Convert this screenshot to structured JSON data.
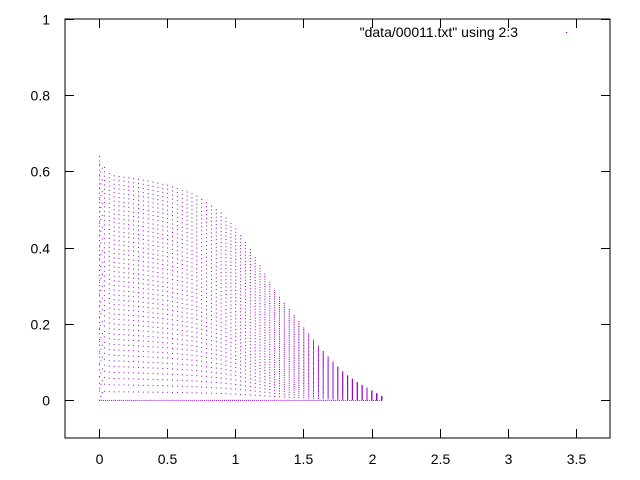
{
  "chart_data": {
    "type": "scatter",
    "title": "",
    "xlabel": "",
    "ylabel": "",
    "xlim": [
      -0.25,
      3.75
    ],
    "ylim": [
      -0.1,
      1.0
    ],
    "x_ticks": [
      0,
      0.5,
      1,
      1.5,
      2,
      2.5,
      3,
      3.5
    ],
    "x_tick_labels": [
      "0",
      "0.5",
      "1",
      "1.5",
      "2",
      "2.5",
      "3",
      "3.5"
    ],
    "y_ticks": [
      0,
      0.2,
      0.4,
      0.6,
      0.8,
      1.0
    ],
    "y_tick_labels": [
      "0",
      "0.2",
      "0.4",
      "0.6",
      "0.8",
      "1"
    ],
    "grid": false,
    "legend_position": "top-right",
    "series": [
      {
        "name": "\"data/00011.txt\" using 2:3",
        "color": "#9400d3",
        "marker": "dot",
        "envelope": {
          "description_values": "upper boundary of the point cloud in data units",
          "x": [
            0.0,
            0.05,
            0.1,
            0.3,
            0.5,
            0.7,
            0.9,
            1.0,
            1.1,
            1.2,
            1.3,
            1.4,
            1.5,
            1.6,
            1.7,
            1.8,
            1.9,
            2.0,
            2.07
          ],
          "y": [
            0.64,
            0.6,
            0.59,
            0.58,
            0.565,
            0.54,
            0.49,
            0.45,
            0.4,
            0.34,
            0.28,
            0.235,
            0.19,
            0.145,
            0.105,
            0.07,
            0.045,
            0.025,
            0.01
          ]
        },
        "x_range": [
          0.0,
          2.07
        ],
        "y_range": [
          0.0,
          0.64
        ]
      }
    ]
  }
}
